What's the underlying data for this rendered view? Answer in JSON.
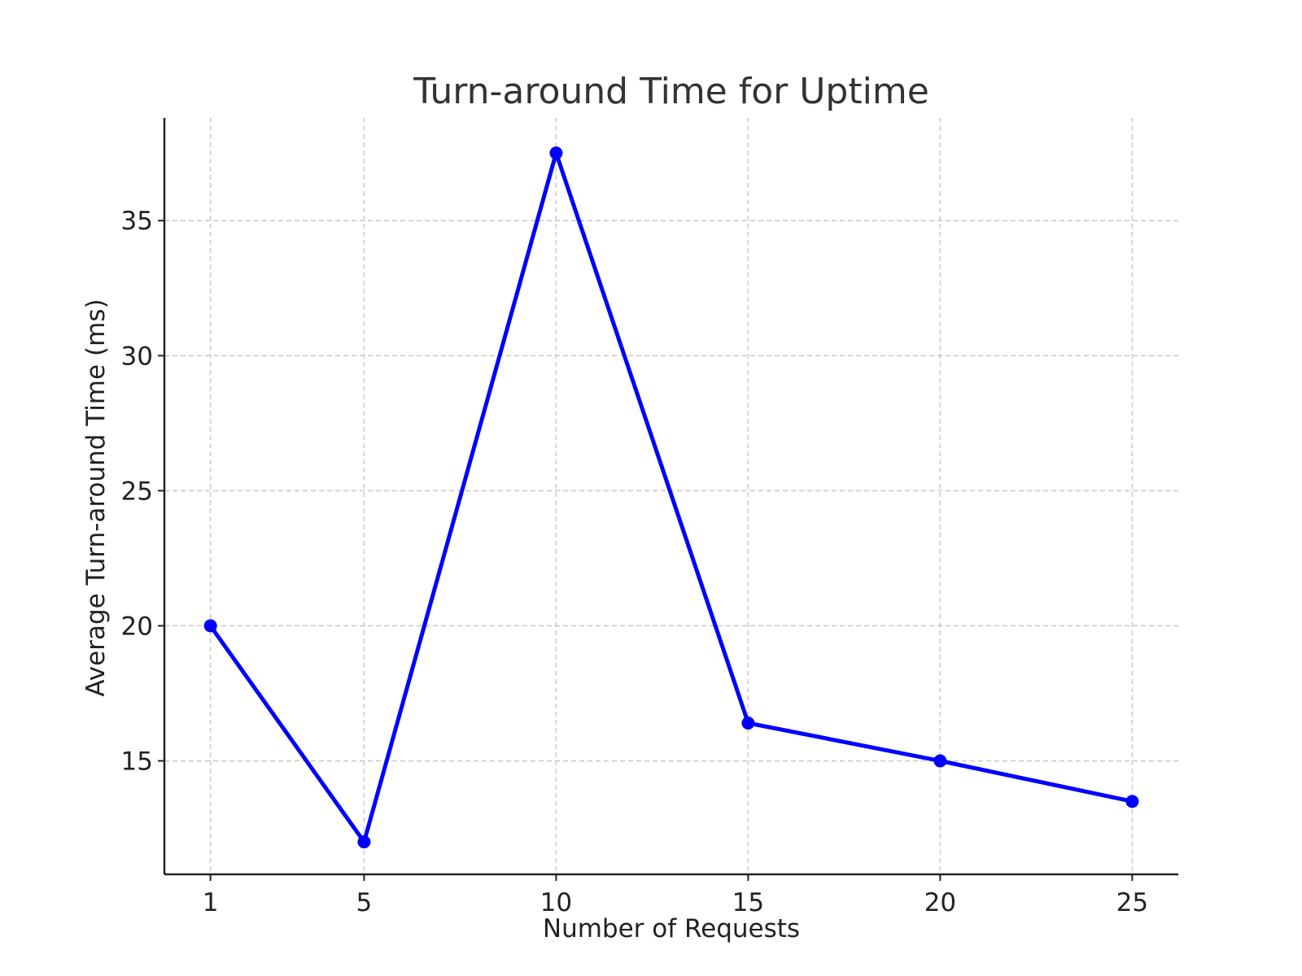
{
  "chart_data": {
    "type": "line",
    "title": "Turn-around Time for Uptime",
    "xlabel": "Number of Requests",
    "ylabel": "Average Turn-around Time (ms)",
    "x": [
      1,
      5,
      10,
      15,
      20,
      25
    ],
    "x_ticks": [
      "1",
      "5",
      "10",
      "15",
      "20",
      "25"
    ],
    "y_ticks": [
      15,
      20,
      25,
      30,
      35
    ],
    "xlim": [
      -0.2,
      26.2
    ],
    "ylim": [
      10.8,
      38.8
    ],
    "grid": true,
    "series": [
      {
        "values": [
          20.0,
          12.0,
          37.5,
          16.4,
          15.0,
          13.5
        ],
        "color": "#0000ff",
        "marker": "circle"
      }
    ]
  }
}
